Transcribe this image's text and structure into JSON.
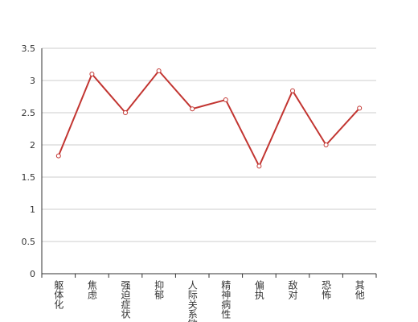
{
  "chart_data": {
    "type": "line",
    "categories": [
      "躯体化",
      "焦虑",
      "强迫症状",
      "抑郁",
      "人际关系敏感",
      "精神病性",
      "偏执",
      "敌对",
      "恐怖",
      "其他"
    ],
    "values": [
      1.83,
      3.1,
      2.5,
      3.15,
      2.56,
      2.7,
      1.67,
      2.84,
      2.0,
      2.57
    ],
    "color": "#c23531",
    "ylim": [
      0,
      3.5
    ],
    "yticks": [
      0,
      0.5,
      1,
      1.5,
      2,
      2.5,
      3,
      3.5
    ],
    "grid": true
  }
}
